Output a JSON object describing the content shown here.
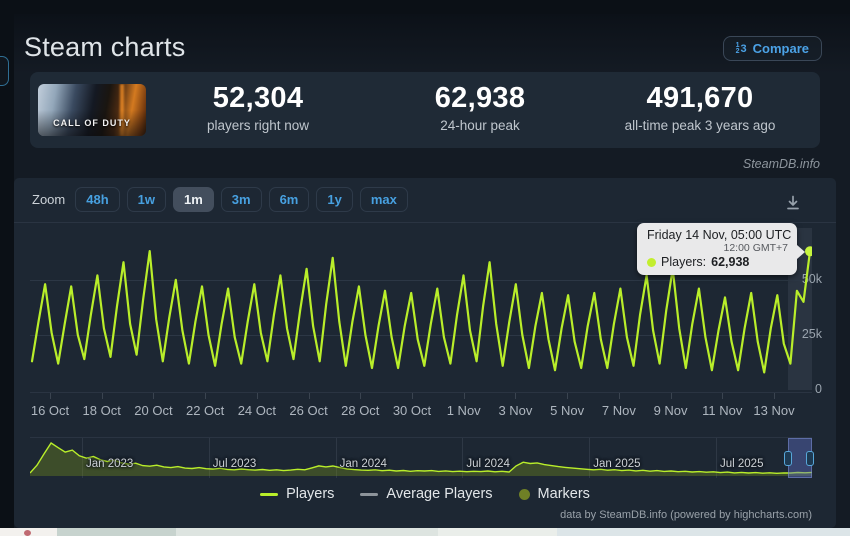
{
  "page": {
    "title": "Steam charts",
    "compare_label": "Compare",
    "watermark": "SteamDB.info",
    "footer_credit": "data by SteamDB.info (powered by highcharts.com)"
  },
  "game": {
    "name": "Call of Duty",
    "capsule_text": "CALL OF DUTY"
  },
  "stats": [
    {
      "value": "52,304",
      "label": "players right now"
    },
    {
      "value": "62,938",
      "label": "24-hour peak"
    },
    {
      "value": "491,670",
      "label": "all-time peak 3 years ago"
    }
  ],
  "chart_toolbar": {
    "zoom_label": "Zoom",
    "buttons": [
      "48h",
      "1w",
      "1m",
      "3m",
      "6m",
      "1y",
      "max"
    ],
    "selected": "1m"
  },
  "tooltip": {
    "title": "Friday 14 Nov, 05:00 UTC",
    "subtitle": "12:00 GMT+7",
    "series_label": "Players:",
    "value": "62,938"
  },
  "legend": [
    {
      "label": "Players",
      "swatch": "line",
      "color": "#b9ee2a"
    },
    {
      "label": "Average Players",
      "swatch": "line",
      "color": "#8d949b"
    },
    {
      "label": "Markers",
      "swatch": "dot",
      "color": "#6f8026"
    }
  ],
  "colors": {
    "accent_blue": "#47a0e0",
    "series_green": "#b9ee2a",
    "marker_fill": "#c6f53e",
    "navigator_fill": "rgba(122,150,26,0.35)"
  },
  "chart_data": {
    "type": "line",
    "title": "Call of Duty concurrent players (1 month zoom)",
    "x_ticks": [
      "16 Oct",
      "18 Oct",
      "20 Oct",
      "22 Oct",
      "24 Oct",
      "26 Oct",
      "28 Oct",
      "30 Oct",
      "1 Nov",
      "3 Nov",
      "5 Nov",
      "7 Nov",
      "9 Nov",
      "11 Nov",
      "13 Nov"
    ],
    "y_ticks": [
      {
        "label": "0",
        "value": 0
      },
      {
        "label": "25k",
        "value": 25000
      },
      {
        "label": "50k",
        "value": 50000
      }
    ],
    "ylim": [
      0,
      73500
    ],
    "grid": true,
    "legend_position": "bottom",
    "series": [
      {
        "name": "Players",
        "color": "#b9ee2a",
        "values": [
          13000,
          31000,
          48000,
          26000,
          12000,
          30000,
          47000,
          25000,
          14000,
          34000,
          52000,
          28000,
          15000,
          38000,
          58000,
          30000,
          16000,
          41000,
          63000,
          32000,
          13000,
          33000,
          50000,
          27000,
          12000,
          31000,
          47000,
          25000,
          11000,
          30000,
          46000,
          24000,
          12000,
          31000,
          48000,
          26000,
          13000,
          34000,
          52000,
          28000,
          14000,
          36000,
          55000,
          29000,
          13000,
          39000,
          60000,
          31000,
          11000,
          31000,
          47000,
          25000,
          10000,
          29000,
          45000,
          24000,
          10000,
          29000,
          44000,
          23000,
          11000,
          30000,
          46000,
          24000,
          12000,
          34000,
          52000,
          27000,
          13000,
          38000,
          58000,
          30000,
          11000,
          31000,
          48000,
          25000,
          10000,
          29000,
          44000,
          23000,
          9000,
          28000,
          43000,
          22000,
          10000,
          29000,
          44000,
          23000,
          10000,
          30000,
          46000,
          24000,
          11000,
          34000,
          52000,
          27000,
          12000,
          36000,
          55000,
          28000,
          10000,
          30000,
          46000,
          24000,
          9000,
          27000,
          42000,
          22000,
          9000,
          28000,
          44000,
          22000,
          8000,
          28000,
          43000,
          21000,
          12000,
          45000,
          40000,
          62938
        ]
      }
    ],
    "last_point": {
      "series": "Players",
      "value": 62938,
      "time": "Friday 14 Nov, 05:00 UTC"
    },
    "navigator": {
      "labels": [
        "Jan 2023",
        "Jul 2023",
        "Jan 2024",
        "Jul 2024",
        "Jan 2025",
        "Jul 2025"
      ],
      "ymax": 490000,
      "values": [
        45000,
        160000,
        330000,
        490000,
        420000,
        355000,
        385000,
        300000,
        265000,
        290000,
        240000,
        215000,
        235000,
        195000,
        175000,
        190000,
        155000,
        145000,
        160000,
        135000,
        125000,
        140000,
        118000,
        112000,
        124000,
        108000,
        102000,
        114000,
        98000,
        92000,
        104000,
        94000,
        88000,
        96000,
        84000,
        92000,
        80000,
        88000,
        100000,
        92000,
        120000,
        150000,
        135000,
        148000,
        125000,
        105000,
        95000,
        88000,
        84000,
        92000,
        78000,
        86000,
        74000,
        82000,
        70000,
        78000,
        74000,
        80000,
        68000,
        76000,
        66000,
        72000,
        64000,
        70000,
        66000,
        74000,
        62000,
        70000,
        60000,
        150000,
        205000,
        185000,
        195000,
        170000,
        155000,
        140000,
        128000,
        118000,
        108000,
        100000,
        92000,
        100000,
        86000,
        94000,
        80000,
        88000,
        76000,
        84000,
        72000,
        80000,
        68000,
        74000,
        64000,
        70000,
        60000,
        66000,
        56000,
        62000,
        50000,
        58000,
        46000,
        54000,
        44000,
        50000,
        42000,
        48000,
        40000,
        46000,
        44000,
        52000,
        48000,
        53000
      ]
    }
  }
}
